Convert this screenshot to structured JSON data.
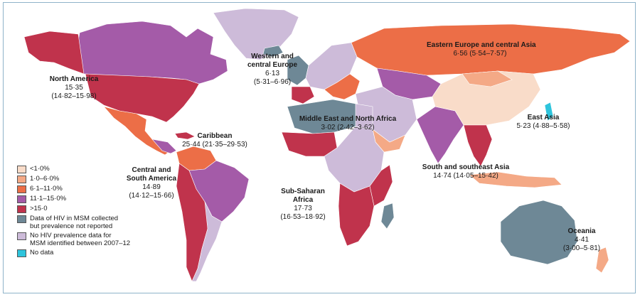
{
  "colors": {
    "ocean": "#ffffff",
    "lt1": "#f9dcc9",
    "c1to6": "#f4a986",
    "c6to11": "#ec6e47",
    "c11to15": "#a45ba8",
    "gt15": "#c0334c",
    "notreported": "#6e8896",
    "nodata_hiv": "#cdbbd9",
    "nodata": "#2ec4dc"
  },
  "regions": [
    {
      "name": "North America",
      "value": "15·35",
      "ci": "(14·82–15·98)"
    },
    {
      "name": "Western and central Europe",
      "name_line1": "Western and",
      "name_line2": "central Europe",
      "value": "6·13",
      "ci": "(5·31–6·96)"
    },
    {
      "name": "Eastern Europe and central Asia",
      "value": "6·56 (5·54–7·57)"
    },
    {
      "name": "Caribbean",
      "value": "25·44 (21·35–29·53)"
    },
    {
      "name": "Middle East and North Africa",
      "value": "3·02 (2·42–3·62)"
    },
    {
      "name": "East Asia",
      "value": "5·23 (4·88–5·58)"
    },
    {
      "name_line1": "Central and",
      "name_line2": "South America",
      "value": "14·89",
      "ci": "(14·12–15·66)"
    },
    {
      "name": "South and southeast Asia",
      "value": "14·74 (14·05–15·42)"
    },
    {
      "name_line1": "Sub-Saharan",
      "name_line2": "Africa",
      "value": "17·73",
      "ci": "(16·53–18·92)"
    },
    {
      "name": "Oceania",
      "value": "4·41",
      "ci": "(3·00–5·81)"
    }
  ],
  "legend": [
    {
      "label": "<1·0%",
      "color": "#f9dcc9"
    },
    {
      "label": "1·0–6·0%",
      "color": "#f4a986"
    },
    {
      "label": "6·1–11·0%",
      "color": "#ec6e47"
    },
    {
      "label": "11·1–15·0%",
      "color": "#a45ba8"
    },
    {
      "label": ">15·0",
      "color": "#c0334c"
    },
    {
      "label": "Data of HIV in MSM collected",
      "label2": "but prevalence not reported",
      "color": "#6e8896"
    },
    {
      "label": "No HIV prevalence data for",
      "label2": "MSM identified between 2007–12",
      "color": "#cdbbd9"
    },
    {
      "label": "No data",
      "color": "#2ec4dc"
    }
  ]
}
